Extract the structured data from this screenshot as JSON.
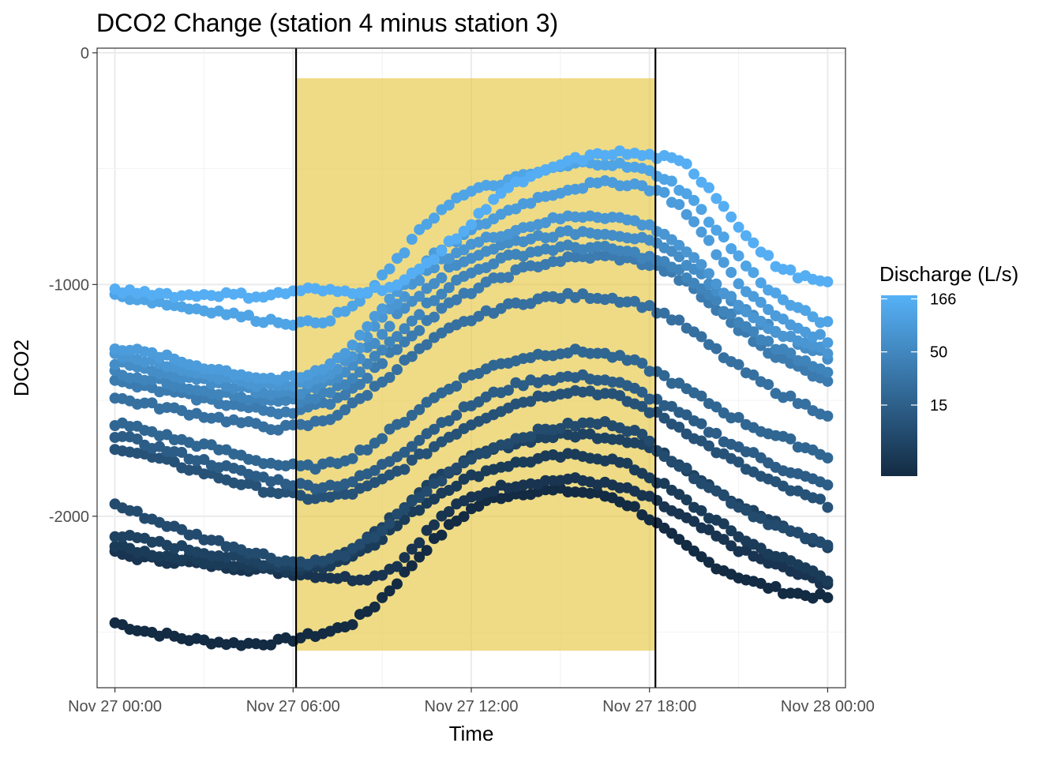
{
  "chart_data": {
    "type": "scatter",
    "title": "DCO2 Change (station 4 minus station 3)",
    "xlabel": "Time",
    "ylabel": "DCO2",
    "x_ticks": [
      "Nov 27 00:00",
      "Nov 27 06:00",
      "Nov 27 12:00",
      "Nov 27 18:00",
      "Nov 28 00:00"
    ],
    "x_tick_hours": [
      0,
      6,
      12,
      18,
      24
    ],
    "y_ticks": [
      0,
      -1000,
      -2000
    ],
    "y_tick_labels": [
      "0",
      "-1000",
      "-2000"
    ],
    "xlim_hours": [
      -0.6,
      24.6
    ],
    "ylim": [
      -2740,
      20
    ],
    "grid": true,
    "legend_position": "right",
    "shaded_region": {
      "x_start_hours": 6.1,
      "x_end_hours": 18.2,
      "y_min": -2580,
      "y_max": -110,
      "color": "#e6c744"
    },
    "vertical_lines_hours": [
      6.1,
      18.2
    ],
    "color_scale": {
      "title": "Discharge (L/s)",
      "labels": [
        "166",
        "50",
        "15"
      ],
      "values": [
        166,
        50,
        15
      ],
      "low_color": "#132b43",
      "high_color": "#56b1f7",
      "min": 3,
      "max": 180,
      "transform": "log"
    },
    "series": [
      {
        "discharge": 166,
        "values": [
          -1030,
          -1030,
          -1040,
          -1050,
          -1040,
          -1045,
          -1050,
          -1040,
          -1020,
          -1030,
          -1030,
          -1020,
          -1000,
          -920,
          -830,
          -740,
          -620,
          -560,
          -520,
          -470,
          -450,
          -430,
          -440,
          -450,
          -480,
          -580,
          -710,
          -840,
          -930,
          -970,
          -1000
        ]
      },
      {
        "discharge": 120,
        "values": [
          -1050,
          -1060,
          -1080,
          -1100,
          -1110,
          -1130,
          -1150,
          -1160,
          -1170,
          -1150,
          -1100,
          -1000,
          -880,
          -750,
          -650,
          -600,
          -570,
          -540,
          -510,
          -490,
          -470,
          -480,
          -500,
          -530,
          -600,
          -720,
          -850,
          -970,
          -1060,
          -1120,
          -1170
        ]
      },
      {
        "discharge": 95,
        "values": [
          -1270,
          -1290,
          -1310,
          -1340,
          -1360,
          -1380,
          -1400,
          -1410,
          -1400,
          -1350,
          -1260,
          -1130,
          -1010,
          -910,
          -830,
          -770,
          -710,
          -660,
          -620,
          -590,
          -570,
          -560,
          -570,
          -600,
          -680,
          -820,
          -960,
          -1070,
          -1150,
          -1200,
          -1240
        ]
      },
      {
        "discharge": 80,
        "values": [
          -1300,
          -1320,
          -1350,
          -1370,
          -1390,
          -1410,
          -1430,
          -1440,
          -1430,
          -1390,
          -1300,
          -1180,
          -1060,
          -960,
          -880,
          -830,
          -790,
          -760,
          -730,
          -710,
          -700,
          -710,
          -730,
          -770,
          -850,
          -960,
          -1070,
          -1150,
          -1210,
          -1250,
          -1290
        ]
      },
      {
        "discharge": 60,
        "values": [
          -1340,
          -1360,
          -1390,
          -1410,
          -1420,
          -1440,
          -1460,
          -1470,
          -1460,
          -1420,
          -1350,
          -1240,
          -1120,
          -1020,
          -940,
          -880,
          -840,
          -810,
          -790,
          -780,
          -770,
          -780,
          -800,
          -840,
          -900,
          -990,
          -1080,
          -1150,
          -1210,
          -1260,
          -1310
        ]
      },
      {
        "discharge": 45,
        "values": [
          -1380,
          -1400,
          -1420,
          -1440,
          -1460,
          -1480,
          -1500,
          -1510,
          -1500,
          -1470,
          -1410,
          -1310,
          -1200,
          -1100,
          -1010,
          -950,
          -900,
          -870,
          -850,
          -840,
          -840,
          -850,
          -870,
          -900,
          -960,
          -1050,
          -1140,
          -1220,
          -1280,
          -1330,
          -1370
        ]
      },
      {
        "discharge": 35,
        "values": [
          -1420,
          -1440,
          -1460,
          -1480,
          -1500,
          -1520,
          -1540,
          -1550,
          -1540,
          -1510,
          -1450,
          -1360,
          -1260,
          -1170,
          -1090,
          -1030,
          -980,
          -940,
          -910,
          -890,
          -880,
          -880,
          -900,
          -930,
          -990,
          -1080,
          -1170,
          -1250,
          -1320,
          -1370,
          -1410
        ]
      },
      {
        "discharge": 25,
        "values": [
          -1490,
          -1510,
          -1530,
          -1550,
          -1570,
          -1590,
          -1610,
          -1620,
          -1610,
          -1580,
          -1520,
          -1440,
          -1350,
          -1270,
          -1200,
          -1150,
          -1110,
          -1080,
          -1060,
          -1050,
          -1050,
          -1060,
          -1080,
          -1120,
          -1180,
          -1260,
          -1340,
          -1410,
          -1470,
          -1520,
          -1560
        ]
      },
      {
        "discharge": 18,
        "values": [
          -1600,
          -1620,
          -1650,
          -1680,
          -1700,
          -1730,
          -1760,
          -1780,
          -1790,
          -1780,
          -1740,
          -1680,
          -1600,
          -1520,
          -1450,
          -1390,
          -1350,
          -1320,
          -1300,
          -1290,
          -1290,
          -1310,
          -1340,
          -1390,
          -1450,
          -1510,
          -1570,
          -1620,
          -1660,
          -1700,
          -1740
        ]
      },
      {
        "discharge": 14,
        "values": [
          -1650,
          -1680,
          -1710,
          -1740,
          -1770,
          -1800,
          -1830,
          -1850,
          -1870,
          -1870,
          -1850,
          -1800,
          -1730,
          -1650,
          -1580,
          -1520,
          -1470,
          -1430,
          -1410,
          -1400,
          -1400,
          -1420,
          -1460,
          -1510,
          -1570,
          -1630,
          -1690,
          -1740,
          -1790,
          -1830,
          -1870
        ]
      },
      {
        "discharge": 10,
        "values": [
          -1700,
          -1730,
          -1760,
          -1790,
          -1820,
          -1850,
          -1880,
          -1900,
          -1920,
          -1920,
          -1900,
          -1860,
          -1800,
          -1730,
          -1660,
          -1600,
          -1550,
          -1510,
          -1480,
          -1460,
          -1460,
          -1480,
          -1520,
          -1570,
          -1630,
          -1700,
          -1760,
          -1820,
          -1870,
          -1910,
          -1950
        ]
      },
      {
        "discharge": 8,
        "values": [
          -1950,
          -1990,
          -2030,
          -2070,
          -2100,
          -2130,
          -2160,
          -2190,
          -2200,
          -2190,
          -2150,
          -2080,
          -1990,
          -1900,
          -1820,
          -1750,
          -1700,
          -1660,
          -1630,
          -1610,
          -1600,
          -1600,
          -1640,
          -1720,
          -1800,
          -1870,
          -1940,
          -2000,
          -2050,
          -2090,
          -2130
        ]
      },
      {
        "discharge": 6,
        "values": [
          -2080,
          -2100,
          -2120,
          -2140,
          -2160,
          -2180,
          -2200,
          -2210,
          -2210,
          -2190,
          -2140,
          -2060,
          -1970,
          -1880,
          -1810,
          -1750,
          -1710,
          -1680,
          -1660,
          -1650,
          -1650,
          -1660,
          -1680,
          -1730,
          -1790,
          -1860,
          -1930,
          -1990,
          -2040,
          -2090,
          -2130
        ]
      },
      {
        "discharge": 5,
        "values": [
          -2130,
          -2150,
          -2170,
          -2180,
          -2200,
          -2210,
          -2220,
          -2230,
          -2230,
          -2210,
          -2170,
          -2110,
          -2030,
          -1950,
          -1880,
          -1830,
          -1790,
          -1770,
          -1750,
          -1740,
          -1740,
          -1760,
          -1800,
          -1860,
          -1930,
          -2000,
          -2070,
          -2130,
          -2180,
          -2220,
          -2270
        ]
      },
      {
        "discharge": 4,
        "values": [
          -2160,
          -2180,
          -2190,
          -2200,
          -2210,
          -2220,
          -2230,
          -2240,
          -2250,
          -2260,
          -2270,
          -2260,
          -2200,
          -2080,
          -1980,
          -1920,
          -1880,
          -1860,
          -1850,
          -1840,
          -1850,
          -1870,
          -1900,
          -1950,
          -2010,
          -2070,
          -2130,
          -2180,
          -2220,
          -2260,
          -2290
        ]
      },
      {
        "discharge": 3,
        "values": [
          -2460,
          -2490,
          -2510,
          -2530,
          -2540,
          -2550,
          -2550,
          -2540,
          -2520,
          -2500,
          -2460,
          -2380,
          -2270,
          -2150,
          -2050,
          -1970,
          -1920,
          -1900,
          -1890,
          -1890,
          -1900,
          -1920,
          -1970,
          -2050,
          -2130,
          -2200,
          -2250,
          -2290,
          -2320,
          -2340,
          -2350
        ]
      }
    ]
  }
}
